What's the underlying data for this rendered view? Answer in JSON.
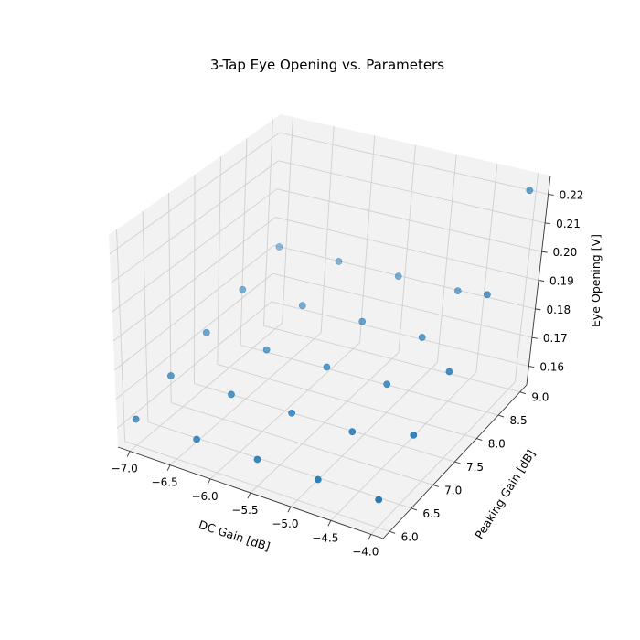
{
  "chart_data": {
    "type": "scatter3d",
    "title": "3-Tap Eye Opening vs. Parameters",
    "xlabel": "DC Gain [dB]",
    "ylabel": "Peaking Gain [dB]",
    "zlabel": "Eye Opening [V]",
    "xlim": [
      -7.15,
      -3.85
    ],
    "ylim": [
      5.85,
      9.15
    ],
    "zlim": [
      0.1535,
      0.2265
    ],
    "x_ticks": [
      -7.0,
      -6.5,
      -6.0,
      -5.5,
      -5.0,
      -4.5,
      -4.0
    ],
    "x_tick_labels": [
      "−7.0",
      "−6.5",
      "−6.0",
      "−5.5",
      "−5.0",
      "−4.5",
      "−4.0"
    ],
    "y_ticks": [
      6.0,
      6.5,
      7.0,
      7.5,
      8.0,
      8.5,
      9.0
    ],
    "y_tick_labels": [
      "6.0",
      "6.5",
      "7.0",
      "7.5",
      "8.0",
      "8.5",
      "9.0"
    ],
    "z_ticks": [
      0.16,
      0.17,
      0.18,
      0.19,
      0.2,
      0.21,
      0.22
    ],
    "z_tick_labels": [
      "0.16",
      "0.17",
      "0.18",
      "0.19",
      "0.20",
      "0.21",
      "0.22"
    ],
    "grid": true,
    "legend": "none",
    "marker_color": "#1f77b4",
    "x_values": [
      -7.0,
      -6.25,
      -5.5,
      -4.75,
      -4.0
    ],
    "y_values": [
      6.0,
      6.75,
      7.5,
      8.25,
      9.0
    ],
    "z_formula_note": "",
    "points": [
      {
        "x": -7.0,
        "y": 6.0,
        "z": 0.1625
      },
      {
        "x": -7.0,
        "y": 6.75,
        "z": 0.1675
      },
      {
        "x": -7.0,
        "y": 7.5,
        "z": 0.1725
      },
      {
        "x": -7.0,
        "y": 8.25,
        "z": 0.1775
      },
      {
        "x": -7.0,
        "y": 9.0,
        "z": 0.1825
      },
      {
        "x": -6.25,
        "y": 6.0,
        "z": 0.1625
      },
      {
        "x": -6.25,
        "y": 6.75,
        "z": 0.1675
      },
      {
        "x": -6.25,
        "y": 7.5,
        "z": 0.1725
      },
      {
        "x": -6.25,
        "y": 8.25,
        "z": 0.1775
      },
      {
        "x": -6.25,
        "y": 9.0,
        "z": 0.1825
      },
      {
        "x": -5.5,
        "y": 6.0,
        "z": 0.1625
      },
      {
        "x": -5.5,
        "y": 6.75,
        "z": 0.1675
      },
      {
        "x": -5.5,
        "y": 7.5,
        "z": 0.1725
      },
      {
        "x": -5.5,
        "y": 8.25,
        "z": 0.1775
      },
      {
        "x": -5.5,
        "y": 9.0,
        "z": 0.1825
      },
      {
        "x": -4.75,
        "y": 6.0,
        "z": 0.1625
      },
      {
        "x": -4.75,
        "y": 6.75,
        "z": 0.1675
      },
      {
        "x": -4.75,
        "y": 7.5,
        "z": 0.1725
      },
      {
        "x": -4.75,
        "y": 8.25,
        "z": 0.1775
      },
      {
        "x": -4.75,
        "y": 9.0,
        "z": 0.1825
      },
      {
        "x": -4.0,
        "y": 6.0,
        "z": 0.1625
      },
      {
        "x": -4.0,
        "y": 6.75,
        "z": 0.1725
      },
      {
        "x": -4.0,
        "y": 7.5,
        "z": 0.1825
      },
      {
        "x": -4.0,
        "y": 8.25,
        "z": 0.1975
      },
      {
        "x": -4.0,
        "y": 9.0,
        "z": 0.2225
      }
    ]
  }
}
